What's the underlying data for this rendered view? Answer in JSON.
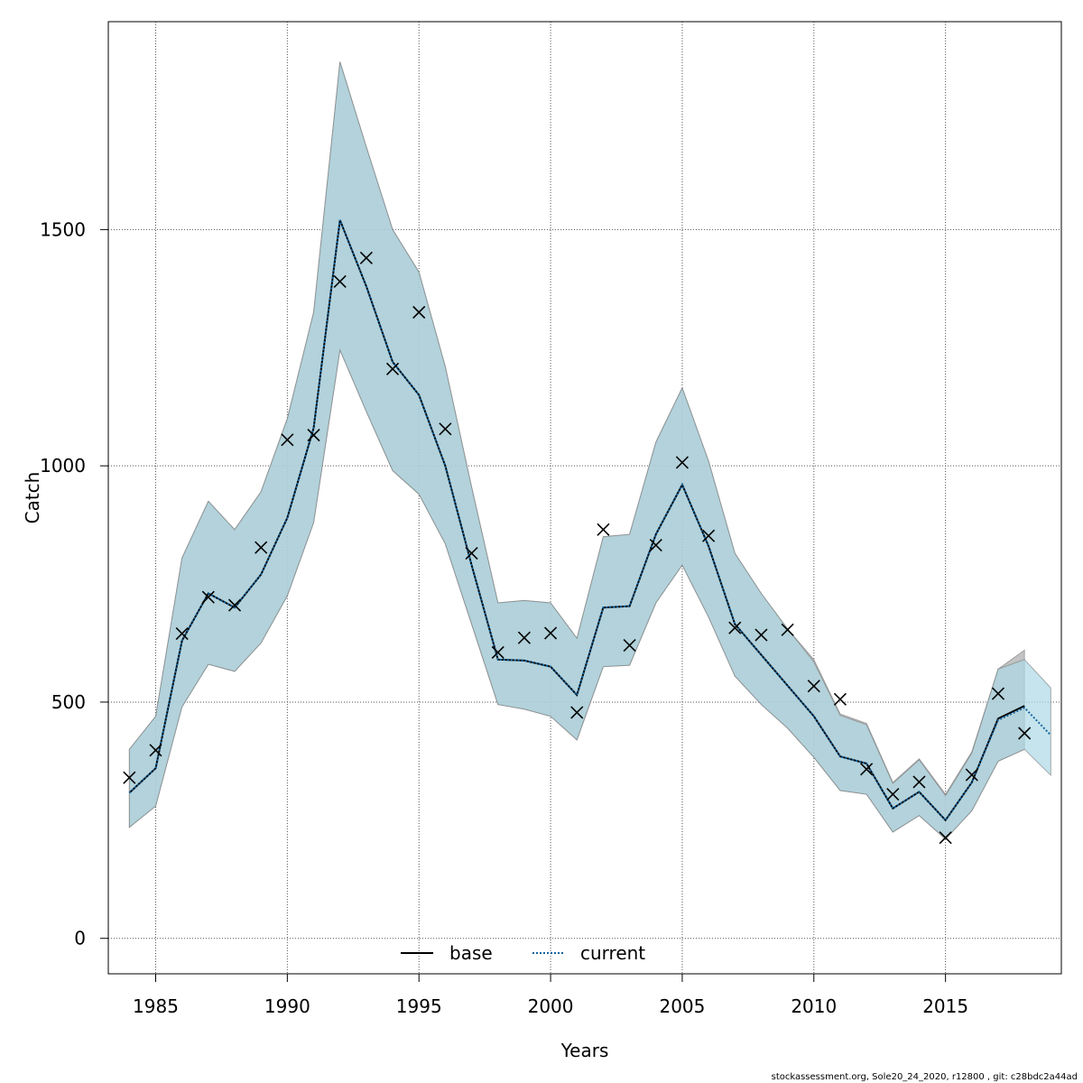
{
  "chart_data": {
    "type": "line",
    "xlabel": "Years",
    "ylabel": "Catch",
    "xlim": [
      1983.2,
      2019.4
    ],
    "ylim": [
      -75,
      1940
    ],
    "xticks": [
      1985,
      1990,
      1995,
      2000,
      2005,
      2010,
      2015
    ],
    "yticks": [
      0,
      500,
      1000,
      1500
    ],
    "grid": true,
    "legend": {
      "placement": "bottom-center",
      "entries": [
        {
          "label": "base",
          "style": "solid",
          "color": "#000000"
        },
        {
          "label": "current",
          "style": "dotted",
          "color": "#1565a0"
        }
      ]
    },
    "bands": [
      {
        "name": "base",
        "color": "#a9a9a9",
        "x": [
          1984,
          1985,
          1986,
          1987,
          1988,
          1989,
          1990,
          1991,
          1992,
          1993,
          1994,
          1995,
          1996,
          1997,
          1998,
          1999,
          2000,
          2001,
          2002,
          2003,
          2004,
          2005,
          2006,
          2007,
          2008,
          2009,
          2010,
          2011,
          2012,
          2013,
          2014,
          2015,
          2016,
          2017,
          2018
        ],
        "upper": [
          400,
          470,
          805,
          925,
          865,
          945,
          1100,
          1325,
          1855,
          1675,
          1500,
          1410,
          1210,
          955,
          710,
          715,
          710,
          635,
          850,
          855,
          1050,
          1165,
          1010,
          815,
          730,
          655,
          590,
          475,
          455,
          330,
          380,
          305,
          395,
          570,
          610
        ],
        "lower": [
          235,
          280,
          490,
          580,
          565,
          625,
          725,
          880,
          1245,
          1115,
          990,
          940,
          835,
          665,
          495,
          485,
          470,
          420,
          575,
          578,
          710,
          790,
          680,
          555,
          495,
          445,
          383,
          313,
          305,
          225,
          260,
          210,
          270,
          375,
          400
        ]
      },
      {
        "name": "current",
        "color": "#add8e6",
        "x": [
          1984,
          1985,
          1986,
          1987,
          1988,
          1989,
          1990,
          1991,
          1992,
          1993,
          1994,
          1995,
          1996,
          1997,
          1998,
          1999,
          2000,
          2001,
          2002,
          2003,
          2004,
          2005,
          2006,
          2007,
          2008,
          2009,
          2010,
          2011,
          2012,
          2013,
          2014,
          2015,
          2016,
          2017,
          2018,
          2019
        ],
        "upper": [
          400,
          470,
          805,
          925,
          865,
          945,
          1100,
          1325,
          1855,
          1675,
          1500,
          1410,
          1210,
          955,
          710,
          715,
          710,
          635,
          850,
          855,
          1050,
          1165,
          1010,
          815,
          730,
          655,
          585,
          472,
          452,
          328,
          378,
          302,
          392,
          570,
          590,
          530
        ],
        "lower": [
          235,
          280,
          490,
          580,
          565,
          625,
          725,
          880,
          1245,
          1115,
          990,
          940,
          835,
          665,
          495,
          485,
          470,
          420,
          575,
          578,
          710,
          790,
          680,
          555,
          495,
          445,
          383,
          313,
          305,
          225,
          260,
          210,
          270,
          375,
          400,
          345
        ]
      }
    ],
    "series": [
      {
        "name": "base",
        "style": "solid",
        "color": "#000000",
        "x": [
          1984,
          1985,
          1986,
          1987,
          1988,
          1989,
          1990,
          1991,
          1992,
          1993,
          1994,
          1995,
          1996,
          1997,
          1998,
          1999,
          2000,
          2001,
          2002,
          2003,
          2004,
          2005,
          2006,
          2007,
          2008,
          2009,
          2010,
          2011,
          2012,
          2013,
          2014,
          2015,
          2016,
          2017,
          2018
        ],
        "values": [
          308,
          360,
          630,
          730,
          700,
          770,
          890,
          1080,
          1520,
          1380,
          1220,
          1150,
          1000,
          790,
          590,
          588,
          575,
          515,
          700,
          703,
          855,
          960,
          830,
          665,
          600,
          535,
          470,
          385,
          370,
          275,
          310,
          250,
          330,
          465,
          492
        ]
      },
      {
        "name": "current",
        "style": "dotted",
        "color": "#1565a0",
        "x": [
          1984,
          1985,
          1986,
          1987,
          1988,
          1989,
          1990,
          1991,
          1992,
          1993,
          1994,
          1995,
          1996,
          1997,
          1998,
          1999,
          2000,
          2001,
          2002,
          2003,
          2004,
          2005,
          2006,
          2007,
          2008,
          2009,
          2010,
          2011,
          2012,
          2013,
          2014,
          2015,
          2016,
          2017,
          2018,
          2019
        ],
        "values": [
          308,
          360,
          630,
          730,
          700,
          770,
          890,
          1080,
          1520,
          1380,
          1220,
          1150,
          1000,
          790,
          590,
          588,
          575,
          515,
          700,
          703,
          855,
          960,
          830,
          665,
          600,
          535,
          470,
          385,
          370,
          275,
          310,
          250,
          330,
          462,
          488,
          430
        ]
      }
    ],
    "observed": {
      "marker": "x",
      "color": "#000000",
      "x": [
        1984,
        1985,
        1986,
        1987,
        1988,
        1989,
        1990,
        1991,
        1992,
        1993,
        1994,
        1995,
        1996,
        1997,
        1998,
        1999,
        2000,
        2001,
        2002,
        2003,
        2004,
        2005,
        2006,
        2007,
        2008,
        2009,
        2010,
        2011,
        2012,
        2013,
        2014,
        2015,
        2016,
        2017,
        2018
      ],
      "values": [
        340,
        398,
        645,
        722,
        705,
        827,
        1055,
        1065,
        1390,
        1440,
        1205,
        1325,
        1078,
        815,
        605,
        636,
        646,
        478,
        865,
        620,
        832,
        1007,
        852,
        657,
        642,
        653,
        534,
        506,
        358,
        305,
        331,
        213,
        346,
        518,
        434
      ]
    }
  },
  "footer": "stockassessment.org, Sole20_24_2020, r12800 , git: c28bdc2a44ad"
}
